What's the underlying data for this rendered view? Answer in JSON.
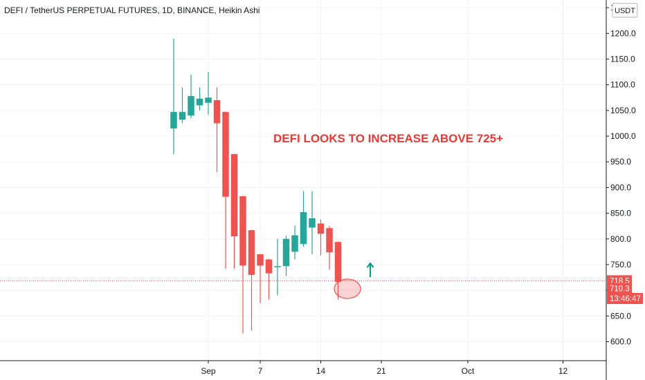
{
  "chart_data": {
    "type": "candlestick",
    "title": "DEFI / TetherUS PERPETUAL FUTURES, 1D, BINANCE, Heikin Ashi",
    "currency": "USDT",
    "annotation": "DEFI LOOKS TO INCREASE ABOVE 725+",
    "ylim": [
      563,
      1265
    ],
    "y_ticks": [
      "600.0",
      "650.0",
      "700.0",
      "750.0",
      "800.0",
      "850.0",
      "900.0",
      "950.0",
      "1000.0",
      "1050.0",
      "1100.0",
      "1150.0",
      "1200.0",
      "1250.0"
    ],
    "x_ticks": [
      {
        "label": "Sep",
        "day": 0
      },
      {
        "label": "7",
        "day": 6
      },
      {
        "label": "14",
        "day": 13
      },
      {
        "label": "21",
        "day": 20
      },
      {
        "label": "Oct",
        "day": 30
      },
      {
        "label": "12",
        "day": 41
      }
    ],
    "candles": [
      {
        "day": -4,
        "open": 1015,
        "high": 1190,
        "low": 965,
        "close": 1047
      },
      {
        "day": -3,
        "open": 1032,
        "high": 1095,
        "low": 1025,
        "close": 1047
      },
      {
        "day": -2,
        "open": 1040,
        "high": 1120,
        "low": 1035,
        "close": 1078
      },
      {
        "day": -1,
        "open": 1060,
        "high": 1095,
        "low": 1050,
        "close": 1073
      },
      {
        "day": 0,
        "open": 1065,
        "high": 1125,
        "low": 1042,
        "close": 1075
      },
      {
        "day": 1,
        "open": 1070,
        "high": 1095,
        "low": 930,
        "close": 1025
      },
      {
        "day": 2,
        "open": 1047,
        "high": 1048,
        "low": 742,
        "close": 882
      },
      {
        "day": 3,
        "open": 965,
        "high": 966,
        "low": 742,
        "close": 805
      },
      {
        "day": 4,
        "open": 883,
        "high": 884,
        "low": 616,
        "close": 748
      },
      {
        "day": 5,
        "open": 817,
        "high": 818,
        "low": 622,
        "close": 730
      },
      {
        "day": 6,
        "open": 770,
        "high": 771,
        "low": 675,
        "close": 748
      },
      {
        "day": 7,
        "open": 760,
        "high": 761,
        "low": 682,
        "close": 733
      },
      {
        "day": 8,
        "open": 745,
        "high": 800,
        "low": 690,
        "close": 747
      },
      {
        "day": 9,
        "open": 747,
        "high": 806,
        "low": 728,
        "close": 800
      },
      {
        "day": 10,
        "open": 775,
        "high": 826,
        "low": 760,
        "close": 807
      },
      {
        "day": 11,
        "open": 790,
        "high": 893,
        "low": 785,
        "close": 852
      },
      {
        "day": 12,
        "open": 822,
        "high": 893,
        "low": 770,
        "close": 840
      },
      {
        "day": 13,
        "open": 830,
        "high": 838,
        "low": 768,
        "close": 810
      },
      {
        "day": 14,
        "open": 821,
        "high": 825,
        "low": 740,
        "close": 774
      },
      {
        "day": 15,
        "open": 794,
        "high": 795,
        "low": 682,
        "close": 716
      }
    ],
    "price_tags": [
      {
        "label": "718.5",
        "value": 718.5
      },
      {
        "label": "710.3",
        "value": 703.5
      },
      {
        "label": "13:46:47",
        "value": 684
      }
    ],
    "current_price_line": 718.5,
    "colors": {
      "up": "#26a69a",
      "down": "#ef5350",
      "tag": "#ef5350",
      "grid": "#f0f3fa",
      "axis": "#131722",
      "arrow": "#089981"
    }
  }
}
